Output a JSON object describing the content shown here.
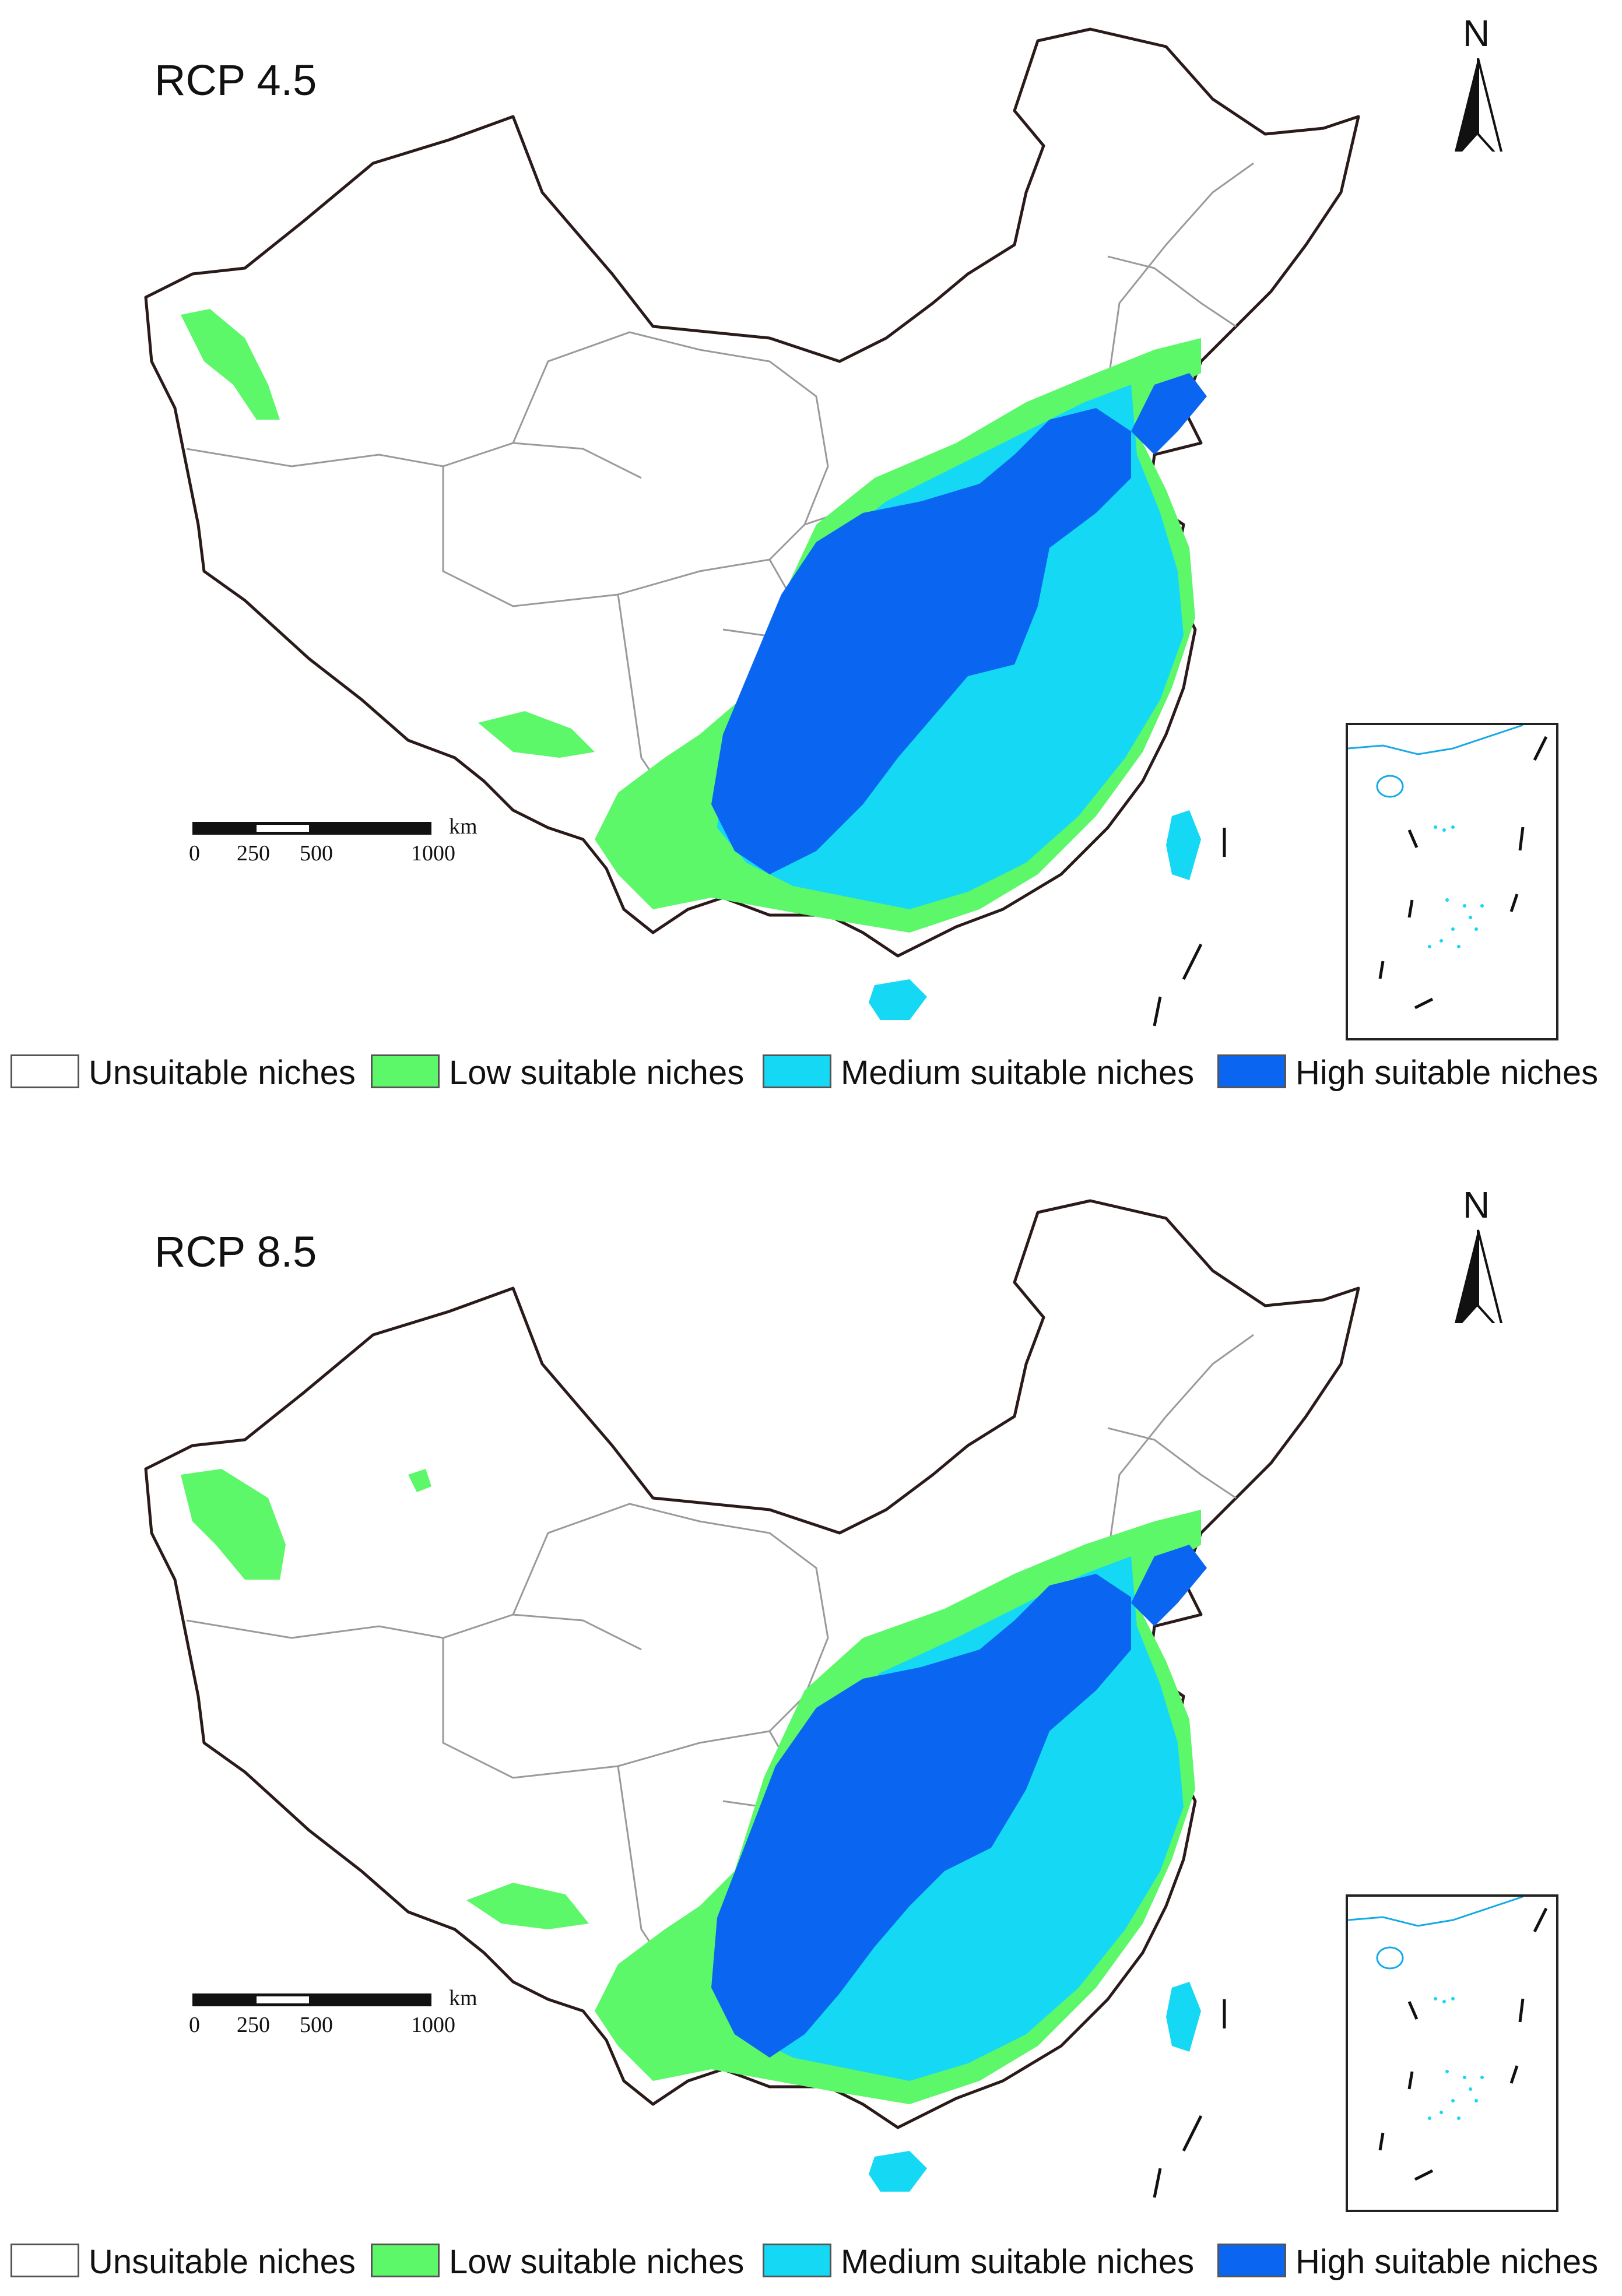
{
  "legend": {
    "unsuitable": {
      "label": "Unsuitable niches",
      "color": "#ffffff"
    },
    "low": {
      "label": "Low suitable niches",
      "color": "#5df76a"
    },
    "medium": {
      "label": "Medium suitable niches",
      "color": "#15d8f5"
    },
    "high": {
      "label": "High suitable niches",
      "color": "#0a66f0"
    }
  },
  "panels": [
    {
      "title": "RCP 4.5",
      "north": "N",
      "scale": {
        "unit": "km",
        "ticks": [
          "0",
          "250",
          "500",
          "1000"
        ]
      }
    },
    {
      "title": "RCP 8.5",
      "north": "N",
      "scale": {
        "unit": "km",
        "ticks": [
          "0",
          "250",
          "500",
          "1000"
        ]
      }
    }
  ]
}
